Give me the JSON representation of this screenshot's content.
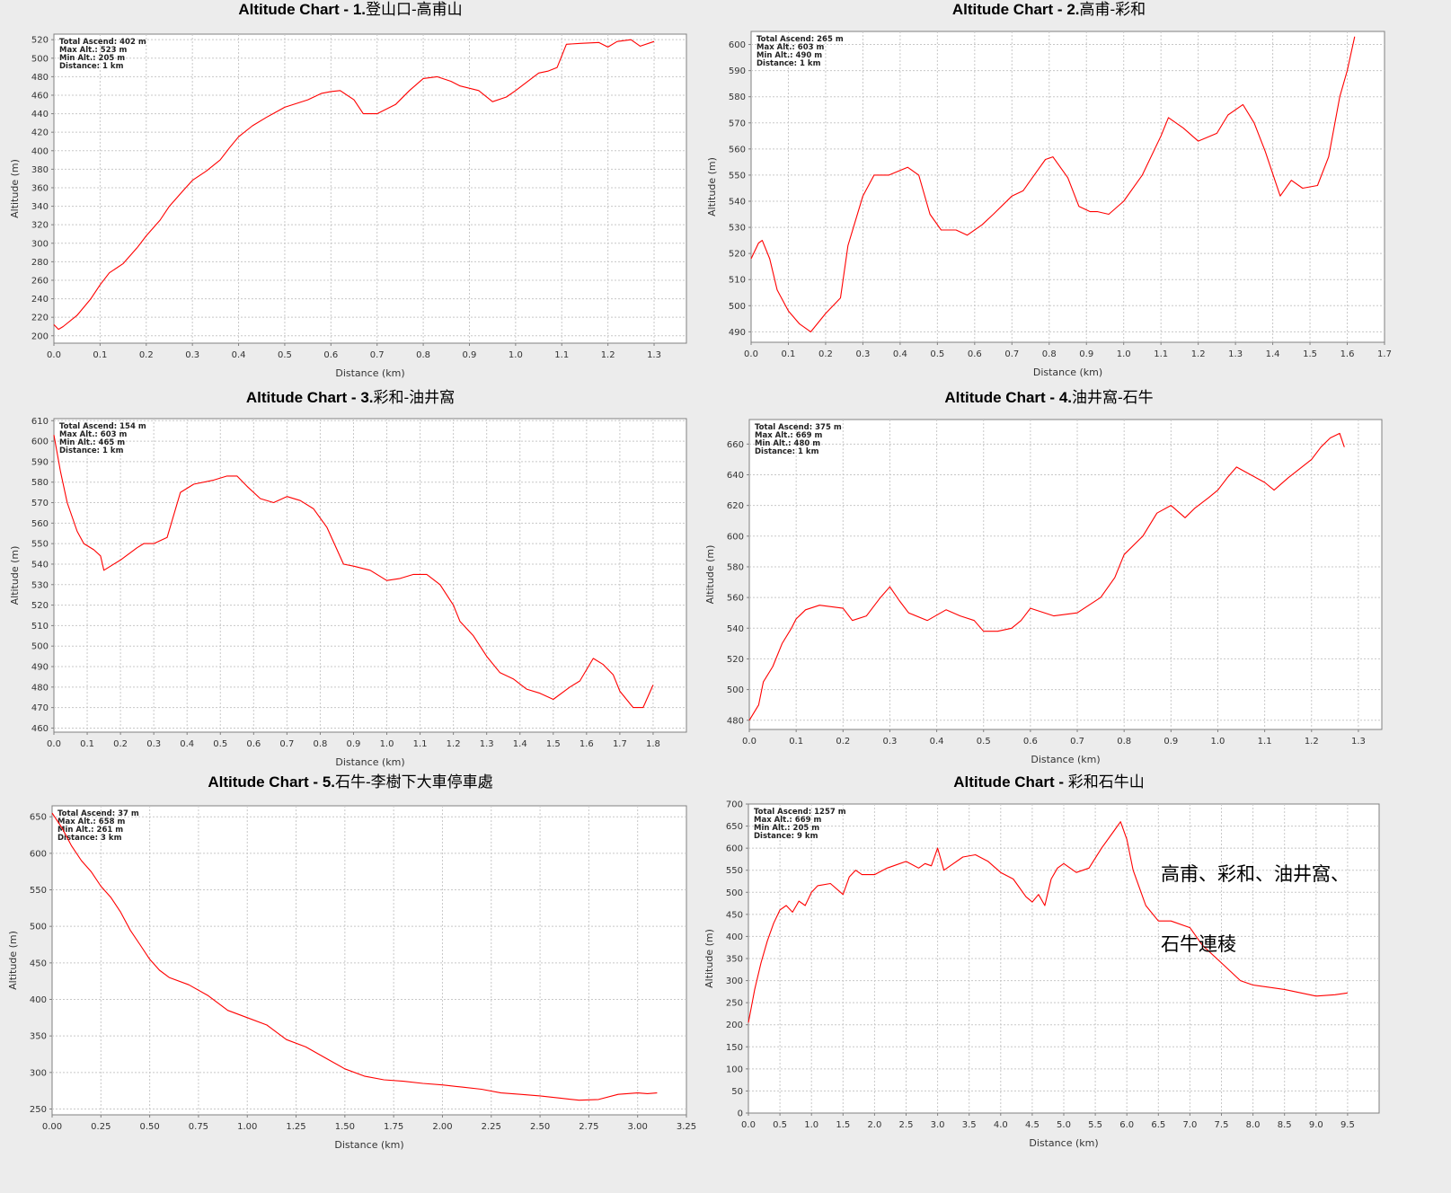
{
  "chart_data": [
    {
      "type": "line",
      "title_prefix": "Altitude Chart - ",
      "title_bold": "1.",
      "title_rest": "登山口-高甫山",
      "stats": [
        "Total Ascend: 402 m",
        "Max Alt.: 523 m",
        "Min Alt.: 205 m",
        "Distance: 1 km"
      ],
      "xlabel": "Distance (km)",
      "ylabel": "Altitude (m)",
      "xlim": [
        0,
        1.37
      ],
      "ylim": [
        192,
        526
      ],
      "xticks": [
        0.0,
        0.1,
        0.2,
        0.3,
        0.4,
        0.5,
        0.6,
        0.7,
        0.8,
        0.9,
        1.0,
        1.1,
        1.2,
        1.3
      ],
      "xtick_labels": [
        "0.0",
        "0.1",
        "0.2",
        "0.3",
        "0.4",
        "0.5",
        "0.6",
        "0.7",
        "0.8",
        "0.9",
        "1.0",
        "1.1",
        "1.2",
        "1.3"
      ],
      "yticks": [
        200,
        220,
        240,
        260,
        280,
        300,
        320,
        340,
        360,
        380,
        400,
        420,
        440,
        460,
        480,
        500,
        520
      ],
      "ytick_labels": [
        "200",
        "220",
        "240",
        "260",
        "280",
        "300",
        "320",
        "340",
        "360",
        "380",
        "400",
        "420",
        "440",
        "460",
        "480",
        "500",
        "520"
      ],
      "series": [
        {
          "color": "#ff0000",
          "x": [
            0,
            0.01,
            0.02,
            0.05,
            0.08,
            0.1,
            0.12,
            0.15,
            0.18,
            0.2,
            0.23,
            0.25,
            0.28,
            0.3,
            0.33,
            0.36,
            0.38,
            0.4,
            0.43,
            0.46,
            0.5,
            0.55,
            0.58,
            0.6,
            0.62,
            0.65,
            0.67,
            0.7,
            0.74,
            0.77,
            0.8,
            0.83,
            0.86,
            0.88,
            0.92,
            0.95,
            0.98,
            1.0,
            1.05,
            1.07,
            1.09,
            1.11,
            1.14,
            1.18,
            1.2,
            1.22,
            1.25,
            1.27,
            1.3
          ],
          "y": [
            212,
            207,
            210,
            222,
            240,
            255,
            268,
            278,
            295,
            308,
            325,
            340,
            357,
            368,
            378,
            390,
            403,
            415,
            427,
            436,
            447,
            455,
            462,
            464,
            465,
            455,
            440,
            440,
            450,
            465,
            478,
            480,
            475,
            470,
            465,
            453,
            458,
            465,
            484,
            486,
            490,
            515,
            516,
            517,
            512,
            518,
            520,
            513,
            518
          ]
        }
      ]
    },
    {
      "type": "line",
      "title_prefix": "Altitude Chart - ",
      "title_bold": "2.",
      "title_rest": "高甫-彩和",
      "stats": [
        "Total Ascend: 265 m",
        "Max Alt.: 603 m",
        "Min Alt.: 490 m",
        "Distance: 1 km"
      ],
      "xlabel": "Distance (km)",
      "ylabel": "Altitude (m)",
      "xlim": [
        0,
        1.7
      ],
      "ylim": [
        486,
        605
      ],
      "xticks": [
        0.0,
        0.1,
        0.2,
        0.3,
        0.4,
        0.5,
        0.6,
        0.7,
        0.8,
        0.9,
        1.0,
        1.1,
        1.2,
        1.3,
        1.4,
        1.5,
        1.6,
        1.7
      ],
      "xtick_labels": [
        "0.0",
        "0.1",
        "0.2",
        "0.3",
        "0.4",
        "0.5",
        "0.6",
        "0.7",
        "0.8",
        "0.9",
        "1.0",
        "1.1",
        "1.2",
        "1.3",
        "1.4",
        "1.5",
        "1.6",
        "1.7"
      ],
      "yticks": [
        490,
        500,
        510,
        520,
        530,
        540,
        550,
        560,
        570,
        580,
        590,
        600
      ],
      "ytick_labels": [
        "490",
        "500",
        "510",
        "520",
        "530",
        "540",
        "550",
        "560",
        "570",
        "580",
        "590",
        "600"
      ],
      "series": [
        {
          "color": "#ff0000",
          "x": [
            0,
            0.02,
            0.03,
            0.05,
            0.07,
            0.1,
            0.13,
            0.16,
            0.2,
            0.24,
            0.26,
            0.3,
            0.33,
            0.37,
            0.42,
            0.45,
            0.48,
            0.51,
            0.55,
            0.58,
            0.62,
            0.65,
            0.7,
            0.73,
            0.77,
            0.79,
            0.81,
            0.85,
            0.88,
            0.91,
            0.93,
            0.96,
            1.0,
            1.05,
            1.1,
            1.12,
            1.16,
            1.2,
            1.25,
            1.28,
            1.32,
            1.35,
            1.38,
            1.42,
            1.45,
            1.48,
            1.52,
            1.55,
            1.58,
            1.6,
            1.62
          ],
          "y": [
            518,
            524,
            525,
            518,
            506,
            498,
            493,
            490,
            497,
            503,
            523,
            542,
            550,
            550,
            553,
            550,
            535,
            529,
            529,
            527,
            531,
            535,
            542,
            544,
            552,
            556,
            557,
            549,
            538,
            536,
            536,
            535,
            540,
            550,
            565,
            572,
            568,
            563,
            566,
            573,
            577,
            570,
            559,
            542,
            548,
            545,
            546,
            557,
            580,
            590,
            603
          ]
        }
      ]
    },
    {
      "type": "line",
      "title_prefix": "Altitude Chart - ",
      "title_bold": "3.",
      "title_rest": "彩和-油井窩",
      "stats": [
        "Total Ascend: 154 m",
        "Max Alt.: 603 m",
        "Min Alt.: 465 m",
        "Distance: 1 km"
      ],
      "xlabel": "Distance (km)",
      "ylabel": "Altitude (m)",
      "xlim": [
        0,
        1.9
      ],
      "ylim": [
        458,
        611
      ],
      "xticks": [
        0.0,
        0.1,
        0.2,
        0.3,
        0.4,
        0.5,
        0.6,
        0.7,
        0.8,
        0.9,
        1.0,
        1.1,
        1.2,
        1.3,
        1.4,
        1.5,
        1.6,
        1.7,
        1.8
      ],
      "xtick_labels": [
        "0.0",
        "0.1",
        "0.2",
        "0.3",
        "0.4",
        "0.5",
        "0.6",
        "0.7",
        "0.8",
        "0.9",
        "1.0",
        "1.1",
        "1.2",
        "1.3",
        "1.4",
        "1.5",
        "1.6",
        "1.7",
        "1.8"
      ],
      "yticks": [
        460,
        470,
        480,
        490,
        500,
        510,
        520,
        530,
        540,
        550,
        560,
        570,
        580,
        590,
        600,
        610
      ],
      "ytick_labels": [
        "460",
        "470",
        "480",
        "490",
        "500",
        "510",
        "520",
        "530",
        "540",
        "550",
        "560",
        "570",
        "580",
        "590",
        "600",
        "610"
      ],
      "series": [
        {
          "color": "#ff0000",
          "x": [
            0,
            0.02,
            0.04,
            0.07,
            0.09,
            0.12,
            0.14,
            0.15,
            0.2,
            0.25,
            0.27,
            0.3,
            0.34,
            0.38,
            0.42,
            0.48,
            0.52,
            0.55,
            0.58,
            0.62,
            0.66,
            0.7,
            0.74,
            0.78,
            0.82,
            0.87,
            0.9,
            0.95,
            1.0,
            1.04,
            1.08,
            1.12,
            1.16,
            1.2,
            1.22,
            1.26,
            1.3,
            1.34,
            1.38,
            1.42,
            1.46,
            1.5,
            1.55,
            1.58,
            1.62,
            1.65,
            1.68,
            1.7,
            1.74,
            1.77,
            1.8
          ],
          "y": [
            603,
            585,
            570,
            556,
            550,
            547,
            544,
            537,
            542,
            548,
            550,
            550,
            553,
            575,
            579,
            581,
            583,
            583,
            578,
            572,
            570,
            573,
            571,
            567,
            558,
            540,
            539,
            537,
            532,
            533,
            535,
            535,
            530,
            520,
            512,
            505,
            495,
            487,
            484,
            479,
            477,
            474,
            480,
            483,
            494,
            491,
            486,
            478,
            470,
            470,
            481
          ]
        }
      ]
    },
    {
      "type": "line",
      "title_prefix": "Altitude Chart - ",
      "title_bold": "4.",
      "title_rest": "油井窩-石牛",
      "stats": [
        "Total Ascend: 375 m",
        "Max Alt.: 669 m",
        "Min Alt.: 480 m",
        "Distance: 1 km"
      ],
      "xlabel": "Distance (km)",
      "ylabel": "Altitude (m)",
      "xlim": [
        0,
        1.35
      ],
      "ylim": [
        474,
        676
      ],
      "xticks": [
        0.0,
        0.1,
        0.2,
        0.3,
        0.4,
        0.5,
        0.6,
        0.7,
        0.8,
        0.9,
        1.0,
        1.1,
        1.2,
        1.3
      ],
      "xtick_labels": [
        "0.0",
        "0.1",
        "0.2",
        "0.3",
        "0.4",
        "0.5",
        "0.6",
        "0.7",
        "0.8",
        "0.9",
        "1.0",
        "1.1",
        "1.2",
        "1.3"
      ],
      "yticks": [
        480,
        500,
        520,
        540,
        560,
        580,
        600,
        620,
        640,
        660
      ],
      "ytick_labels": [
        "480",
        "500",
        "520",
        "540",
        "560",
        "580",
        "600",
        "620",
        "640",
        "660"
      ],
      "series": [
        {
          "color": "#ff0000",
          "x": [
            0,
            0.02,
            0.03,
            0.05,
            0.07,
            0.09,
            0.1,
            0.12,
            0.15,
            0.2,
            0.22,
            0.25,
            0.28,
            0.3,
            0.32,
            0.34,
            0.38,
            0.42,
            0.45,
            0.48,
            0.5,
            0.53,
            0.56,
            0.58,
            0.6,
            0.65,
            0.7,
            0.75,
            0.78,
            0.8,
            0.84,
            0.87,
            0.9,
            0.93,
            0.95,
            0.98,
            1.0,
            1.02,
            1.04,
            1.07,
            1.1,
            1.12,
            1.15,
            1.2,
            1.22,
            1.24,
            1.26,
            1.27
          ],
          "y": [
            480,
            490,
            505,
            515,
            530,
            540,
            546,
            552,
            555,
            553,
            545,
            548,
            560,
            567,
            558,
            550,
            545,
            552,
            548,
            545,
            538,
            538,
            540,
            545,
            553,
            548,
            550,
            560,
            573,
            588,
            600,
            615,
            620,
            612,
            618,
            625,
            630,
            638,
            645,
            640,
            635,
            630,
            638,
            650,
            658,
            664,
            667,
            658
          ]
        }
      ]
    },
    {
      "type": "line",
      "title_prefix": "Altitude Chart - ",
      "title_bold": "5.",
      "title_rest": "石牛-李樹下大車停車處",
      "stats": [
        "Total Ascend: 37 m",
        "Max Alt.: 658 m",
        "Min Alt.: 261 m",
        "Distance: 3 km"
      ],
      "xlabel": "Distance (km)",
      "ylabel": "Altitude (m)",
      "xlim": [
        0,
        3.25
      ],
      "ylim": [
        242,
        665
      ],
      "xticks": [
        0.0,
        0.25,
        0.5,
        0.75,
        1.0,
        1.25,
        1.5,
        1.75,
        2.0,
        2.25,
        2.5,
        2.75,
        3.0,
        3.25
      ],
      "xtick_labels": [
        "0.00",
        "0.25",
        "0.50",
        "0.75",
        "1.00",
        "1.25",
        "1.50",
        "1.75",
        "2.00",
        "2.25",
        "2.50",
        "2.75",
        "3.00",
        "3.25"
      ],
      "yticks": [
        250,
        300,
        350,
        400,
        450,
        500,
        550,
        600,
        650
      ],
      "ytick_labels": [
        "250",
        "300",
        "350",
        "400",
        "450",
        "500",
        "550",
        "600",
        "650"
      ],
      "series": [
        {
          "color": "#ff0000",
          "x": [
            0,
            0.05,
            0.1,
            0.15,
            0.2,
            0.25,
            0.3,
            0.35,
            0.4,
            0.45,
            0.5,
            0.55,
            0.6,
            0.7,
            0.8,
            0.9,
            1.0,
            1.1,
            1.2,
            1.3,
            1.4,
            1.5,
            1.6,
            1.7,
            1.8,
            1.9,
            2.0,
            2.1,
            2.2,
            2.3,
            2.4,
            2.5,
            2.6,
            2.7,
            2.8,
            2.9,
            3.0,
            3.05,
            3.1
          ],
          "y": [
            655,
            635,
            610,
            590,
            575,
            555,
            540,
            520,
            495,
            475,
            455,
            440,
            430,
            420,
            405,
            385,
            375,
            365,
            345,
            335,
            320,
            305,
            295,
            290,
            288,
            285,
            283,
            280,
            277,
            272,
            270,
            268,
            265,
            262,
            263,
            270,
            272,
            271,
            272
          ]
        }
      ]
    },
    {
      "type": "line",
      "title_prefix": "Altitude Chart - ",
      "title_bold": "",
      "title_rest": "彩和石牛山",
      "stats": [
        "Total Ascend: 1257 m",
        "Max Alt.: 669 m",
        "Min Alt.: 205 m",
        "Distance: 9 km"
      ],
      "xlabel": "Distance (km)",
      "ylabel": "Altitude (m)",
      "xlim": [
        0,
        10.0
      ],
      "ylim": [
        0,
        700
      ],
      "xticks": [
        0.0,
        0.5,
        1.0,
        1.5,
        2.0,
        2.5,
        3.0,
        3.5,
        4.0,
        4.5,
        5.0,
        5.5,
        6.0,
        6.5,
        7.0,
        7.5,
        8.0,
        8.5,
        9.0,
        9.5
      ],
      "xtick_labels": [
        "0.0",
        "0.5",
        "1.0",
        "1.5",
        "2.0",
        "2.5",
        "3.0",
        "3.5",
        "4.0",
        "4.5",
        "5.0",
        "5.5",
        "6.0",
        "6.5",
        "7.0",
        "7.5",
        "8.0",
        "8.5",
        "9.0",
        "9.5"
      ],
      "yticks": [
        0,
        50,
        100,
        150,
        200,
        250,
        300,
        350,
        400,
        450,
        500,
        550,
        600,
        650,
        700
      ],
      "ytick_labels": [
        "0",
        "50",
        "100",
        "150",
        "200",
        "250",
        "300",
        "350",
        "400",
        "450",
        "500",
        "550",
        "600",
        "650",
        "700"
      ],
      "series": [
        {
          "color": "#ff0000",
          "x": [
            0,
            0.1,
            0.2,
            0.3,
            0.4,
            0.5,
            0.6,
            0.7,
            0.8,
            0.9,
            1.0,
            1.1,
            1.3,
            1.5,
            1.6,
            1.7,
            1.8,
            2.0,
            2.2,
            2.3,
            2.5,
            2.7,
            2.8,
            2.9,
            3.0,
            3.1,
            3.2,
            3.4,
            3.6,
            3.8,
            4.0,
            4.2,
            4.4,
            4.5,
            4.6,
            4.7,
            4.8,
            4.9,
            5.0,
            5.2,
            5.4,
            5.6,
            5.8,
            5.9,
            6.0,
            6.1,
            6.3,
            6.5,
            6.7,
            7.0,
            7.2,
            7.5,
            7.8,
            8.0,
            8.5,
            9.0,
            9.3,
            9.5
          ],
          "y": [
            205,
            280,
            340,
            390,
            430,
            460,
            470,
            455,
            480,
            470,
            500,
            515,
            520,
            495,
            535,
            550,
            540,
            540,
            555,
            560,
            570,
            555,
            565,
            560,
            600,
            550,
            560,
            580,
            585,
            570,
            545,
            530,
            490,
            478,
            495,
            470,
            530,
            555,
            565,
            545,
            555,
            600,
            640,
            660,
            620,
            550,
            470,
            435,
            435,
            420,
            380,
            340,
            300,
            290,
            280,
            265,
            268,
            272
          ]
        }
      ]
    }
  ],
  "overlay_note": {
    "line1": "高甫、彩和、油井窩、",
    "line2": "石牛連稜"
  }
}
